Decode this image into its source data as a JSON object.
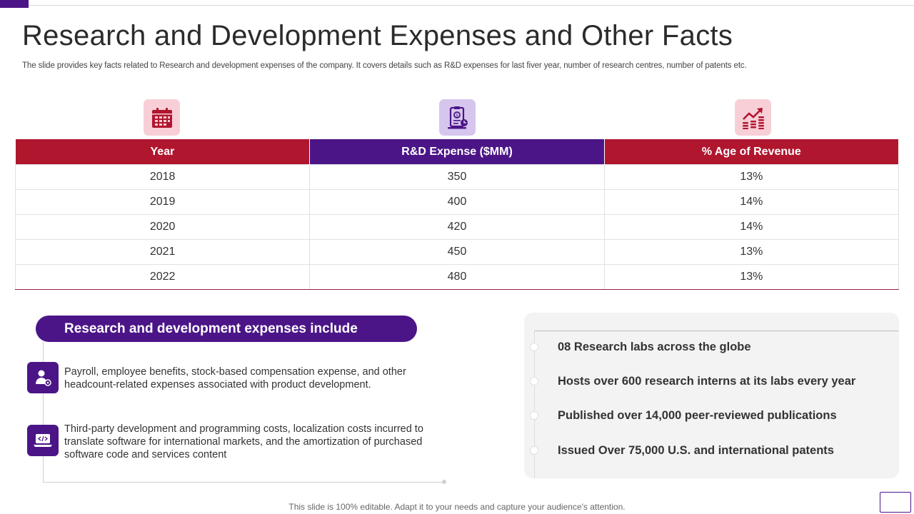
{
  "slide": {
    "title": "Research and Development Expenses and Other Facts",
    "subtitle": "The slide provides key facts related to  Research and development expenses of the company. It covers details such as R&D expenses for last fiver year,  number of research centres, number of patents etc.",
    "footer": "This slide is 100% editable. Adapt it to your needs and capture your audience's attention."
  },
  "colors": {
    "red": "#b0162e",
    "purple": "#4b1587",
    "pink_bg": "#f8cfd6",
    "lavender_bg": "#d6c6ee"
  },
  "icons": [
    "calendar-icon",
    "expense-document-icon",
    "revenue-growth-icon",
    "employee-icon",
    "software-code-icon"
  ],
  "table": {
    "headers": [
      "Year",
      "R&D Expense ($MM)",
      "% Age of Revenue"
    ],
    "rows": [
      [
        "2018",
        "350",
        "13%"
      ],
      [
        "2019",
        "400",
        "14%"
      ],
      [
        "2020",
        "420",
        "14%"
      ],
      [
        "2021",
        "450",
        "13%"
      ],
      [
        "2022",
        "480",
        "13%"
      ]
    ]
  },
  "includes": {
    "heading": "Research and development expenses include",
    "items": [
      "Payroll, employee benefits, stock-based compensation expense, and other headcount-related expenses associated with product development.",
      "Third-party development and programming costs, localization costs incurred to translate software for international  markets, and the amortization of purchased software code and services content"
    ]
  },
  "facts": [
    "08 Research labs across the globe",
    "Hosts over 600 research interns at its labs every year",
    "Published over 14,000 peer-reviewed publications",
    "Issued Over 75,000 U.S. and international patents"
  ]
}
